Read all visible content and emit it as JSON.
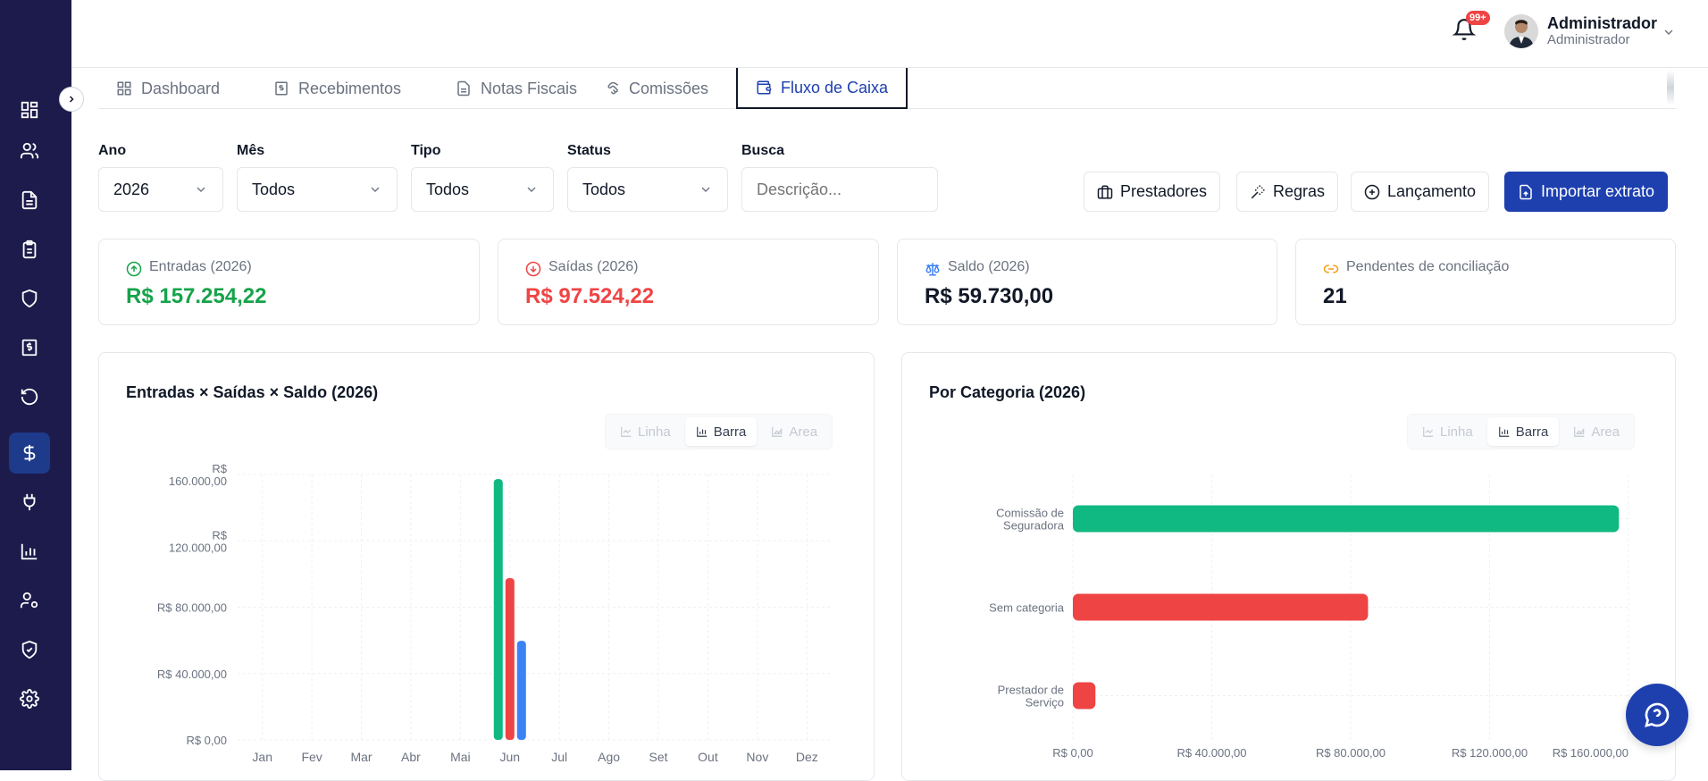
{
  "header": {
    "notification_count": "99+",
    "user_name": "Administrador",
    "user_role": "Administrador"
  },
  "tabs": [
    {
      "label": "Dashboard",
      "icon": "grid-icon"
    },
    {
      "label": "Recebimentos",
      "icon": "receipt-icon"
    },
    {
      "label": "Notas Fiscais",
      "icon": "document-icon"
    },
    {
      "label": "Comissões",
      "icon": "handshake-icon"
    },
    {
      "label": "Fluxo de Caixa",
      "icon": "wallet-icon",
      "active": true
    }
  ],
  "filters": {
    "ano": {
      "label": "Ano",
      "value": "2026"
    },
    "mes": {
      "label": "Mês",
      "value": "Todos"
    },
    "tipo": {
      "label": "Tipo",
      "value": "Todos"
    },
    "status": {
      "label": "Status",
      "value": "Todos"
    },
    "busca": {
      "label": "Busca",
      "placeholder": "Descrição..."
    }
  },
  "actions": {
    "prestadores": "Prestadores",
    "regras": "Regras",
    "lancamento": "Lançamento",
    "importar": "Importar extrato"
  },
  "cards": [
    {
      "label": "Entradas (2026)",
      "value": "R$ 157.254,22",
      "color": "#16a34a",
      "icon": "arrow-up-circle-icon"
    },
    {
      "label": "Saídas (2026)",
      "value": "R$ 97.524,22",
      "color": "#ef4444",
      "icon": "arrow-down-circle-icon"
    },
    {
      "label": "Saldo (2026)",
      "value": "R$ 59.730,00",
      "color": "#111827",
      "icon": "scale-icon"
    },
    {
      "label": "Pendentes de conciliação",
      "value": "21",
      "color": "#111827",
      "icon": "link-icon"
    }
  ],
  "chart_toggles": {
    "linha": "Linha",
    "barra": "Barra",
    "area": "Area"
  },
  "chart_data": [
    {
      "type": "bar",
      "title": "Entradas × Saídas × Saldo (2026)",
      "categories": [
        "Jan",
        "Fev",
        "Mar",
        "Abr",
        "Mai",
        "Jun",
        "Jul",
        "Ago",
        "Set",
        "Out",
        "Nov",
        "Dez"
      ],
      "yticks": [
        "R$ 0,00",
        "R$ 40.000,00",
        "R$ 80.000,00",
        "R$ 120.000,00",
        "R$ 160.000,00"
      ],
      "ylim": [
        0,
        160000
      ],
      "series": [
        {
          "color": "#10b981",
          "values": [
            0,
            0,
            0,
            0,
            0,
            157254.22,
            0,
            0,
            0,
            0,
            0,
            0
          ]
        },
        {
          "color": "#ef4444",
          "values": [
            0,
            0,
            0,
            0,
            0,
            97524.22,
            0,
            0,
            0,
            0,
            0,
            0
          ]
        },
        {
          "color": "#3b82f6",
          "values": [
            0,
            0,
            0,
            0,
            0,
            59730,
            0,
            0,
            0,
            0,
            0,
            0
          ]
        }
      ],
      "grid": true
    },
    {
      "type": "bar",
      "orientation": "horizontal",
      "title": "Por Categoria (2026)",
      "categories": [
        "Comissão de Seguradora",
        "Sem categoria",
        "Prestador de Serviço"
      ],
      "values": [
        157254.22,
        85000,
        6500
      ],
      "colors": [
        "#10b981",
        "#ef4444",
        "#ef4444"
      ],
      "xticks": [
        "R$ 0,00",
        "R$ 40.000,00",
        "R$ 80.000,00",
        "R$ 120.000,00",
        "R$ 160.000,00"
      ],
      "xlim": [
        0,
        160000
      ],
      "grid": true
    }
  ]
}
